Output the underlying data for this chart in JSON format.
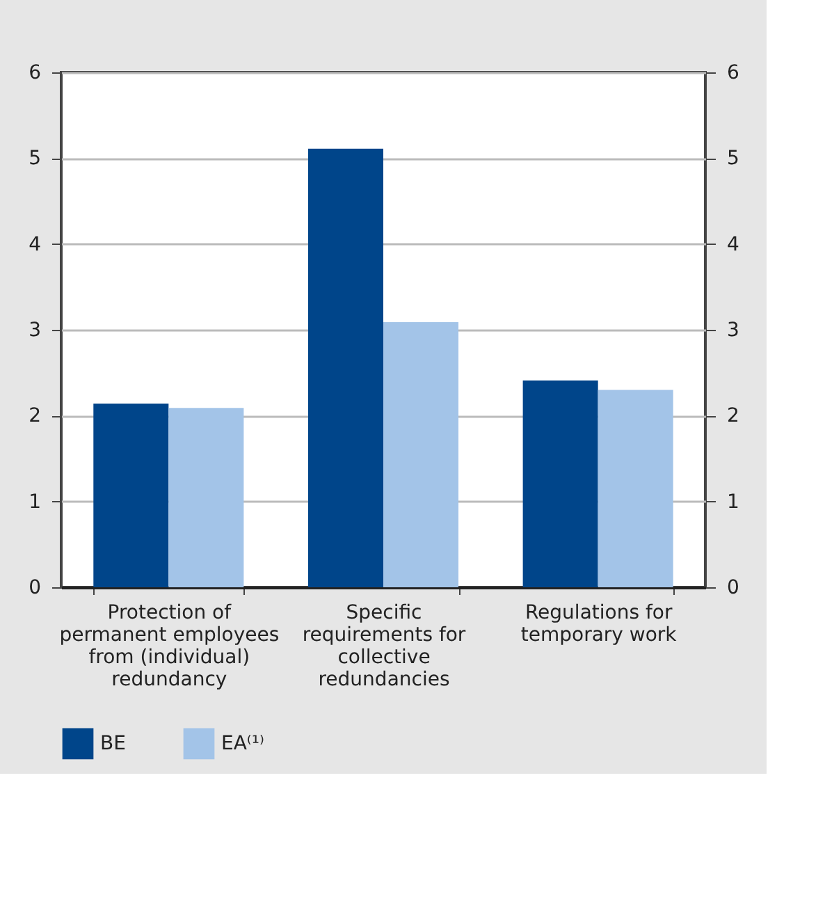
{
  "chart_data": {
    "type": "bar",
    "categories": [
      "Protection of permanent employees from (individual) redundancy",
      "Specific requirements for collective redundancies",
      "Regulations for temporary work"
    ],
    "series": [
      {
        "name": "BE",
        "color": "#00458a",
        "values": [
          2.14,
          5.11,
          2.41
        ]
      },
      {
        "name": "EA⁽¹⁾",
        "color": "#a3c4e8",
        "values": [
          2.09,
          3.09,
          2.3
        ]
      }
    ],
    "ylim": [
      0,
      6
    ],
    "yticks": [
      0,
      1,
      2,
      3,
      4,
      5,
      6
    ],
    "y2lim": [
      0,
      6
    ],
    "y2ticks": [
      0,
      1,
      2,
      3,
      4,
      5,
      6
    ],
    "grid": "y",
    "legend": "bottom left"
  }
}
